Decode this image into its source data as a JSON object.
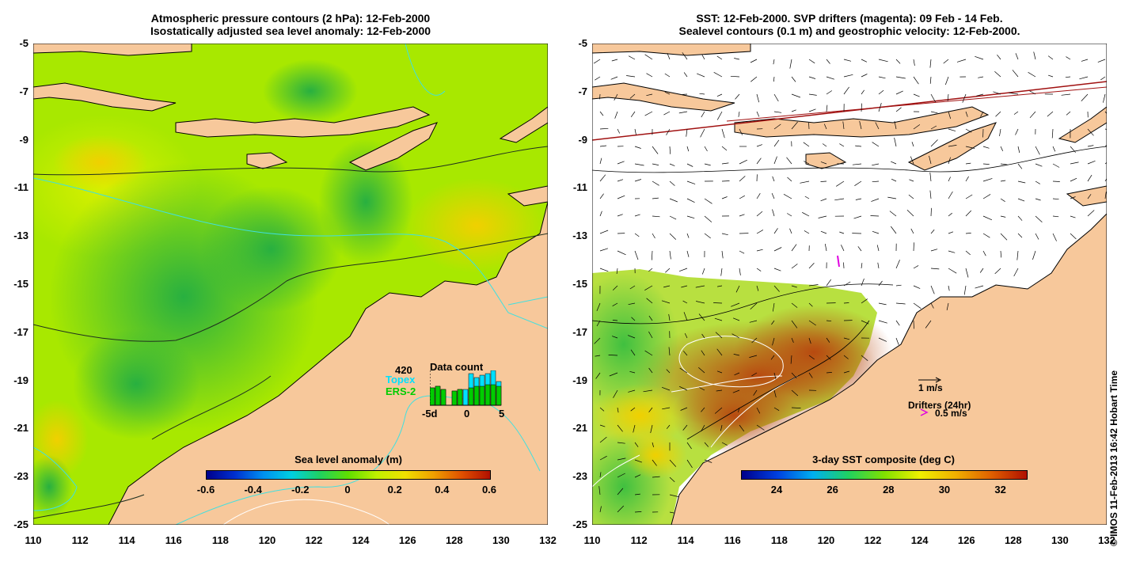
{
  "left_panel": {
    "title_line1": "Atmospheric pressure contours (2 hPa): 12-Feb-2000",
    "title_line2": "Isostatically adjusted sea level anomaly: 12-Feb-2000",
    "colorbar": {
      "title": "Sea level anomaly (m)",
      "ticks": [
        "-0.6",
        "-0.4",
        "-0.2",
        "0",
        "0.2",
        "0.4",
        "0.6"
      ]
    },
    "data_count": {
      "title": "Data count",
      "max_label": "420",
      "series1": "Topex",
      "series2": "ERS-2",
      "x_labels": [
        "-5d",
        "0",
        "5"
      ],
      "series1_color": "#00e0ff",
      "series2_color": "#00cc00"
    }
  },
  "right_panel": {
    "title_line1": "SST: 12-Feb-2000. SVP drifters (magenta): 09 Feb - 14 Feb.",
    "title_line2": "Sealevel contours (0.1 m) and geostrophic velocity: 12-Feb-2000.",
    "colorbar": {
      "title": "3-day SST composite (deg C)",
      "ticks": [
        "24",
        "26",
        "28",
        "30",
        "32"
      ]
    },
    "velocity_scale": "1 m/s",
    "drifters_label": "Drifters (24hr)",
    "drifter_speed": "0.5 m/s",
    "drifter_color": "#e000e0"
  },
  "axes": {
    "y_ticks": [
      "-5",
      "-7",
      "-9",
      "-11",
      "-13",
      "-15",
      "-17",
      "-19",
      "-21",
      "-23",
      "-25"
    ],
    "x_ticks": [
      "110",
      "112",
      "114",
      "116",
      "118",
      "120",
      "122",
      "124",
      "126",
      "128",
      "130",
      "132"
    ],
    "lat_range": [
      -25,
      -5
    ],
    "lon_range": [
      110,
      132
    ]
  },
  "colors": {
    "land": "#f7c89b",
    "ocean_green": "#8ee000",
    "ocean_lime": "#ccf000",
    "ocean_deep": "#40c040",
    "sst_hot": "#c85a10"
  },
  "copyright": "© IMOS 11-Feb-2013 16:42 Hobart Time"
}
